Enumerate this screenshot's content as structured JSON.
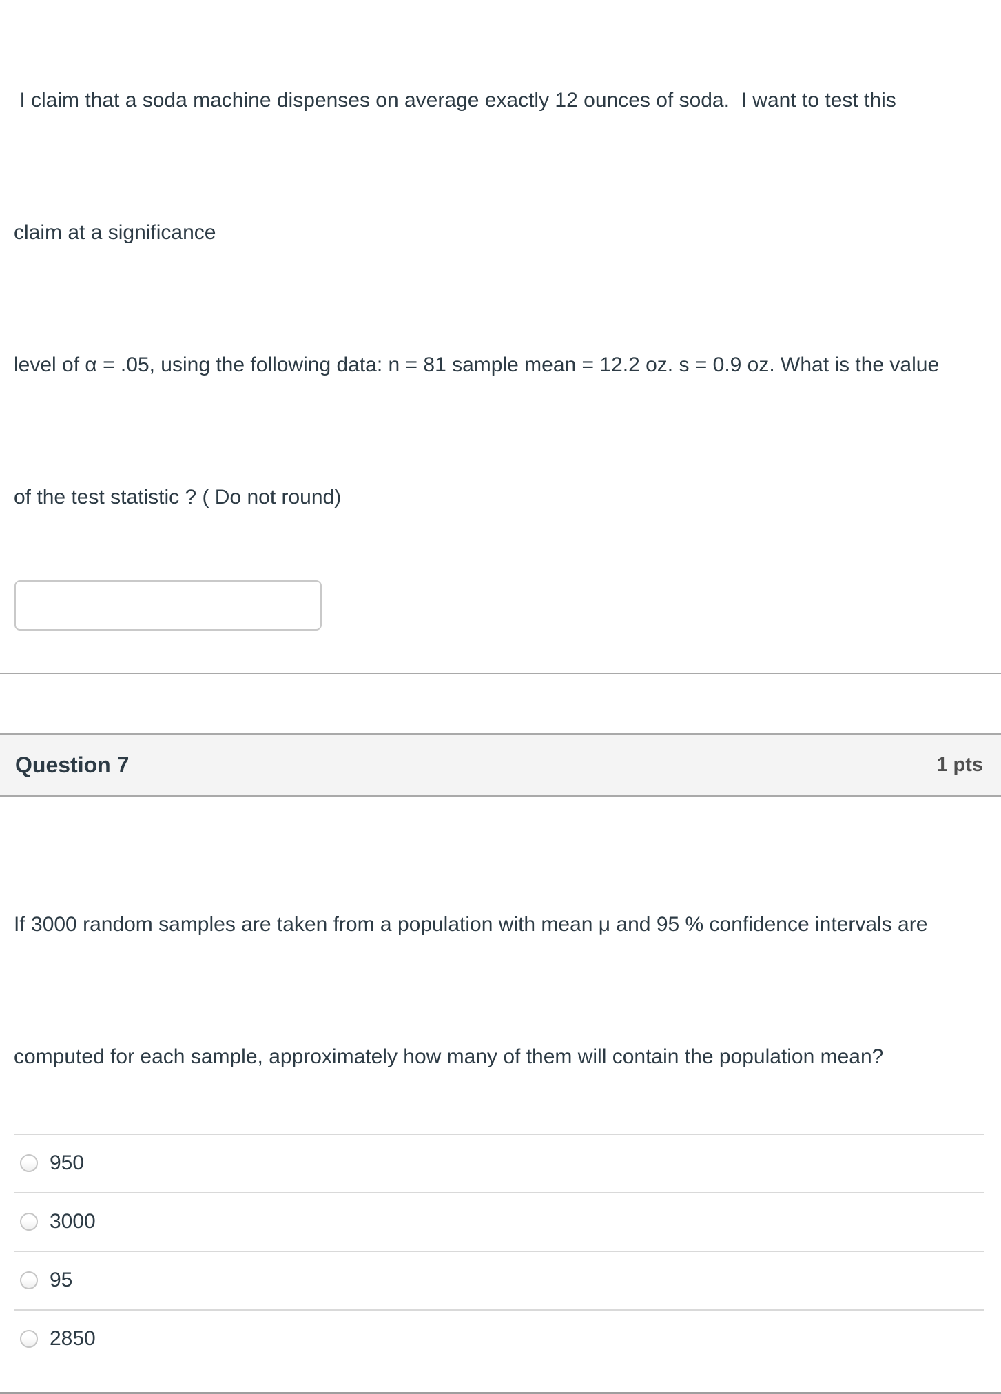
{
  "question6": {
    "prompt_lines": [
      " I claim that a soda machine dispenses on average exactly 12 ounces of soda.  I want to test this",
      "claim at a significance",
      "level of α = .05, using the following data: n = 81 sample mean = 12.2 oz. s = 0.9 oz. What is the value",
      "of the test statistic ? ( Do not round)"
    ],
    "input": {
      "value": "",
      "placeholder": ""
    }
  },
  "question7": {
    "header": {
      "title": "Question 7",
      "points": "1 pts"
    },
    "prompt_lines": [
      "If 3000 random samples are taken from a population with mean μ and 95 % confidence intervals are",
      "computed for each sample, approximately how many of them will contain the population mean?"
    ],
    "options": [
      {
        "label": "950",
        "selected": false
      },
      {
        "label": "3000",
        "selected": false
      },
      {
        "label": "95",
        "selected": false
      },
      {
        "label": "2850",
        "selected": false
      }
    ]
  },
  "colors": {
    "text": "#2d3b45",
    "points_text": "#4f4f4f",
    "header_bg": "#f4f4f4",
    "strong_divider": "#a9a9a9",
    "option_divider": "#d9d9d9",
    "input_border": "#c9c9c9",
    "radio_border": "#c6c6c6"
  }
}
